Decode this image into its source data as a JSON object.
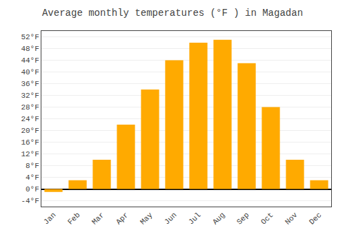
{
  "chart_data": {
    "type": "bar",
    "title": "Average monthly temperatures (°F ) in Magadan",
    "categories": [
      "Jan",
      "Feb",
      "Mar",
      "Apr",
      "May",
      "Jun",
      "Jul",
      "Aug",
      "Sep",
      "Oct",
      "Nov",
      "Dec"
    ],
    "values": [
      -1,
      3,
      10,
      22,
      34,
      44,
      50,
      51,
      43,
      28,
      10,
      3
    ],
    "color": "#FFAA00",
    "ylim": [
      -6,
      54
    ],
    "yticks": [
      {
        "value": -4,
        "label": "-4°F"
      },
      {
        "value": 0,
        "label": "0°F"
      },
      {
        "value": 4,
        "label": "4°F"
      },
      {
        "value": 8,
        "label": "8°F"
      },
      {
        "value": 12,
        "label": "12°F"
      },
      {
        "value": 16,
        "label": "16°F"
      },
      {
        "value": 20,
        "label": "20°F"
      },
      {
        "value": 24,
        "label": "24°F"
      },
      {
        "value": 28,
        "label": "28°F"
      },
      {
        "value": 32,
        "label": "32°F"
      },
      {
        "value": 36,
        "label": "36°F"
      },
      {
        "value": 40,
        "label": "40°F"
      },
      {
        "value": 44,
        "label": "44°F"
      },
      {
        "value": 48,
        "label": "48°F"
      },
      {
        "value": 52,
        "label": "52°F"
      }
    ],
    "grid": true
  }
}
